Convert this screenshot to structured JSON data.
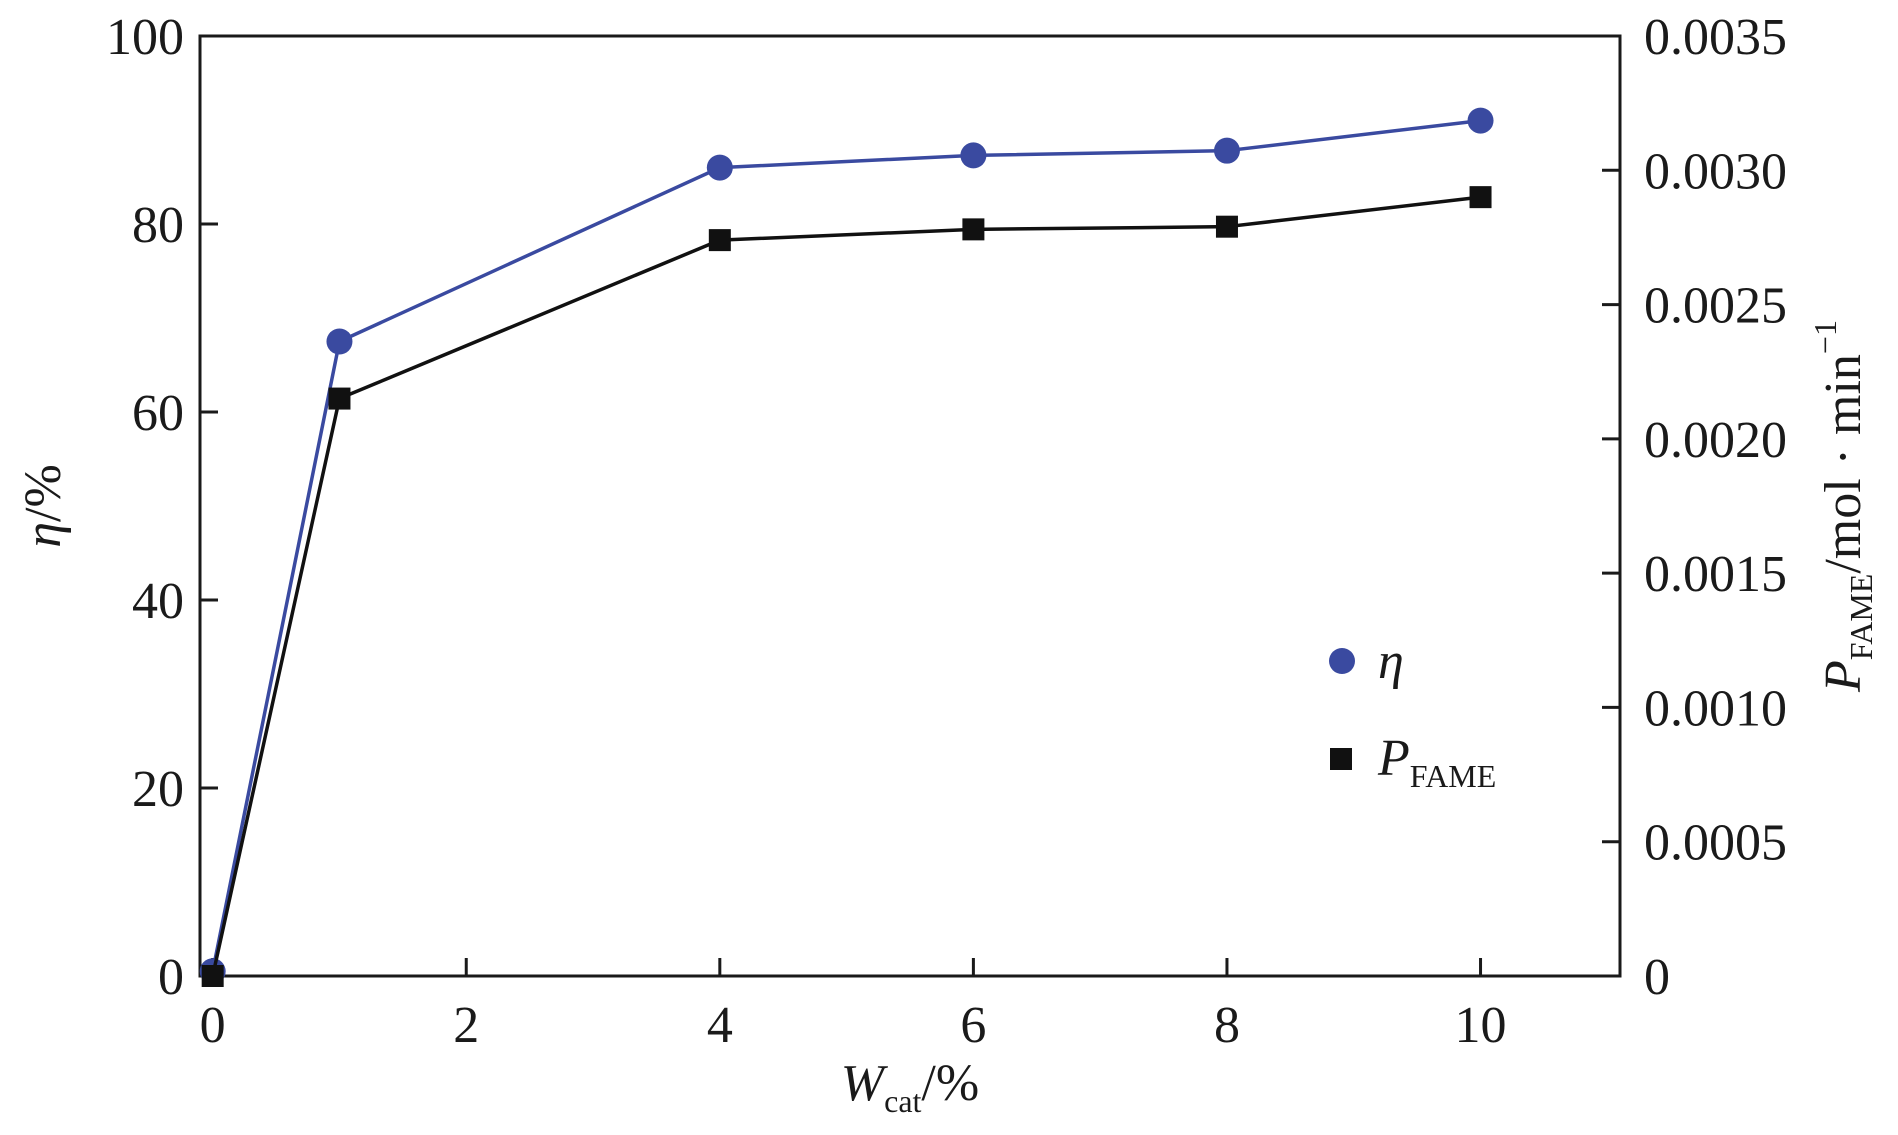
{
  "chart_data": {
    "type": "line",
    "x": [
      0,
      1,
      4,
      6,
      8,
      10
    ],
    "xlim": [
      -0.1,
      11.1
    ],
    "xticks": [
      0,
      2,
      4,
      6,
      8,
      10
    ],
    "xtick_labels": [
      "0",
      "2",
      "4",
      "6",
      "8",
      "10"
    ],
    "xlabel": {
      "symbol": "W",
      "subscript": "cat",
      "suffix": "/%"
    },
    "ylim_left": [
      0,
      100
    ],
    "yticks_left": [
      0,
      20,
      40,
      60,
      80,
      100
    ],
    "ytick_labels_left": [
      "0",
      "20",
      "40",
      "60",
      "80",
      "100"
    ],
    "ylabel_left": {
      "symbol": "η",
      "suffix": "/%"
    },
    "ylim_right": [
      0,
      0.0035
    ],
    "yticks_right": [
      0,
      0.0005,
      0.001,
      0.0015,
      0.002,
      0.0025,
      0.003,
      0.0035
    ],
    "ytick_labels_right": [
      "0",
      "0.0005",
      "0.0010",
      "0.0015",
      "0.0020",
      "0.0025",
      "0.0030",
      "0.0035"
    ],
    "ylabel_right": {
      "symbol": "P",
      "subscript": "FAME",
      "suffix": "/mol · min",
      "superscript": "−1"
    },
    "grid": false,
    "legend_position": "center-right",
    "series": [
      {
        "name": "η",
        "axis": "left",
        "marker": "circle",
        "color": "#3a4aa0",
        "values": [
          0.5,
          67.5,
          86,
          87.3,
          87.8,
          91
        ]
      },
      {
        "name": "P",
        "name_subscript": "FAME",
        "axis": "right",
        "marker": "square",
        "color": "#111111",
        "values": [
          0,
          0.00215,
          0.00274,
          0.00278,
          0.00279,
          0.0029
        ]
      }
    ]
  }
}
